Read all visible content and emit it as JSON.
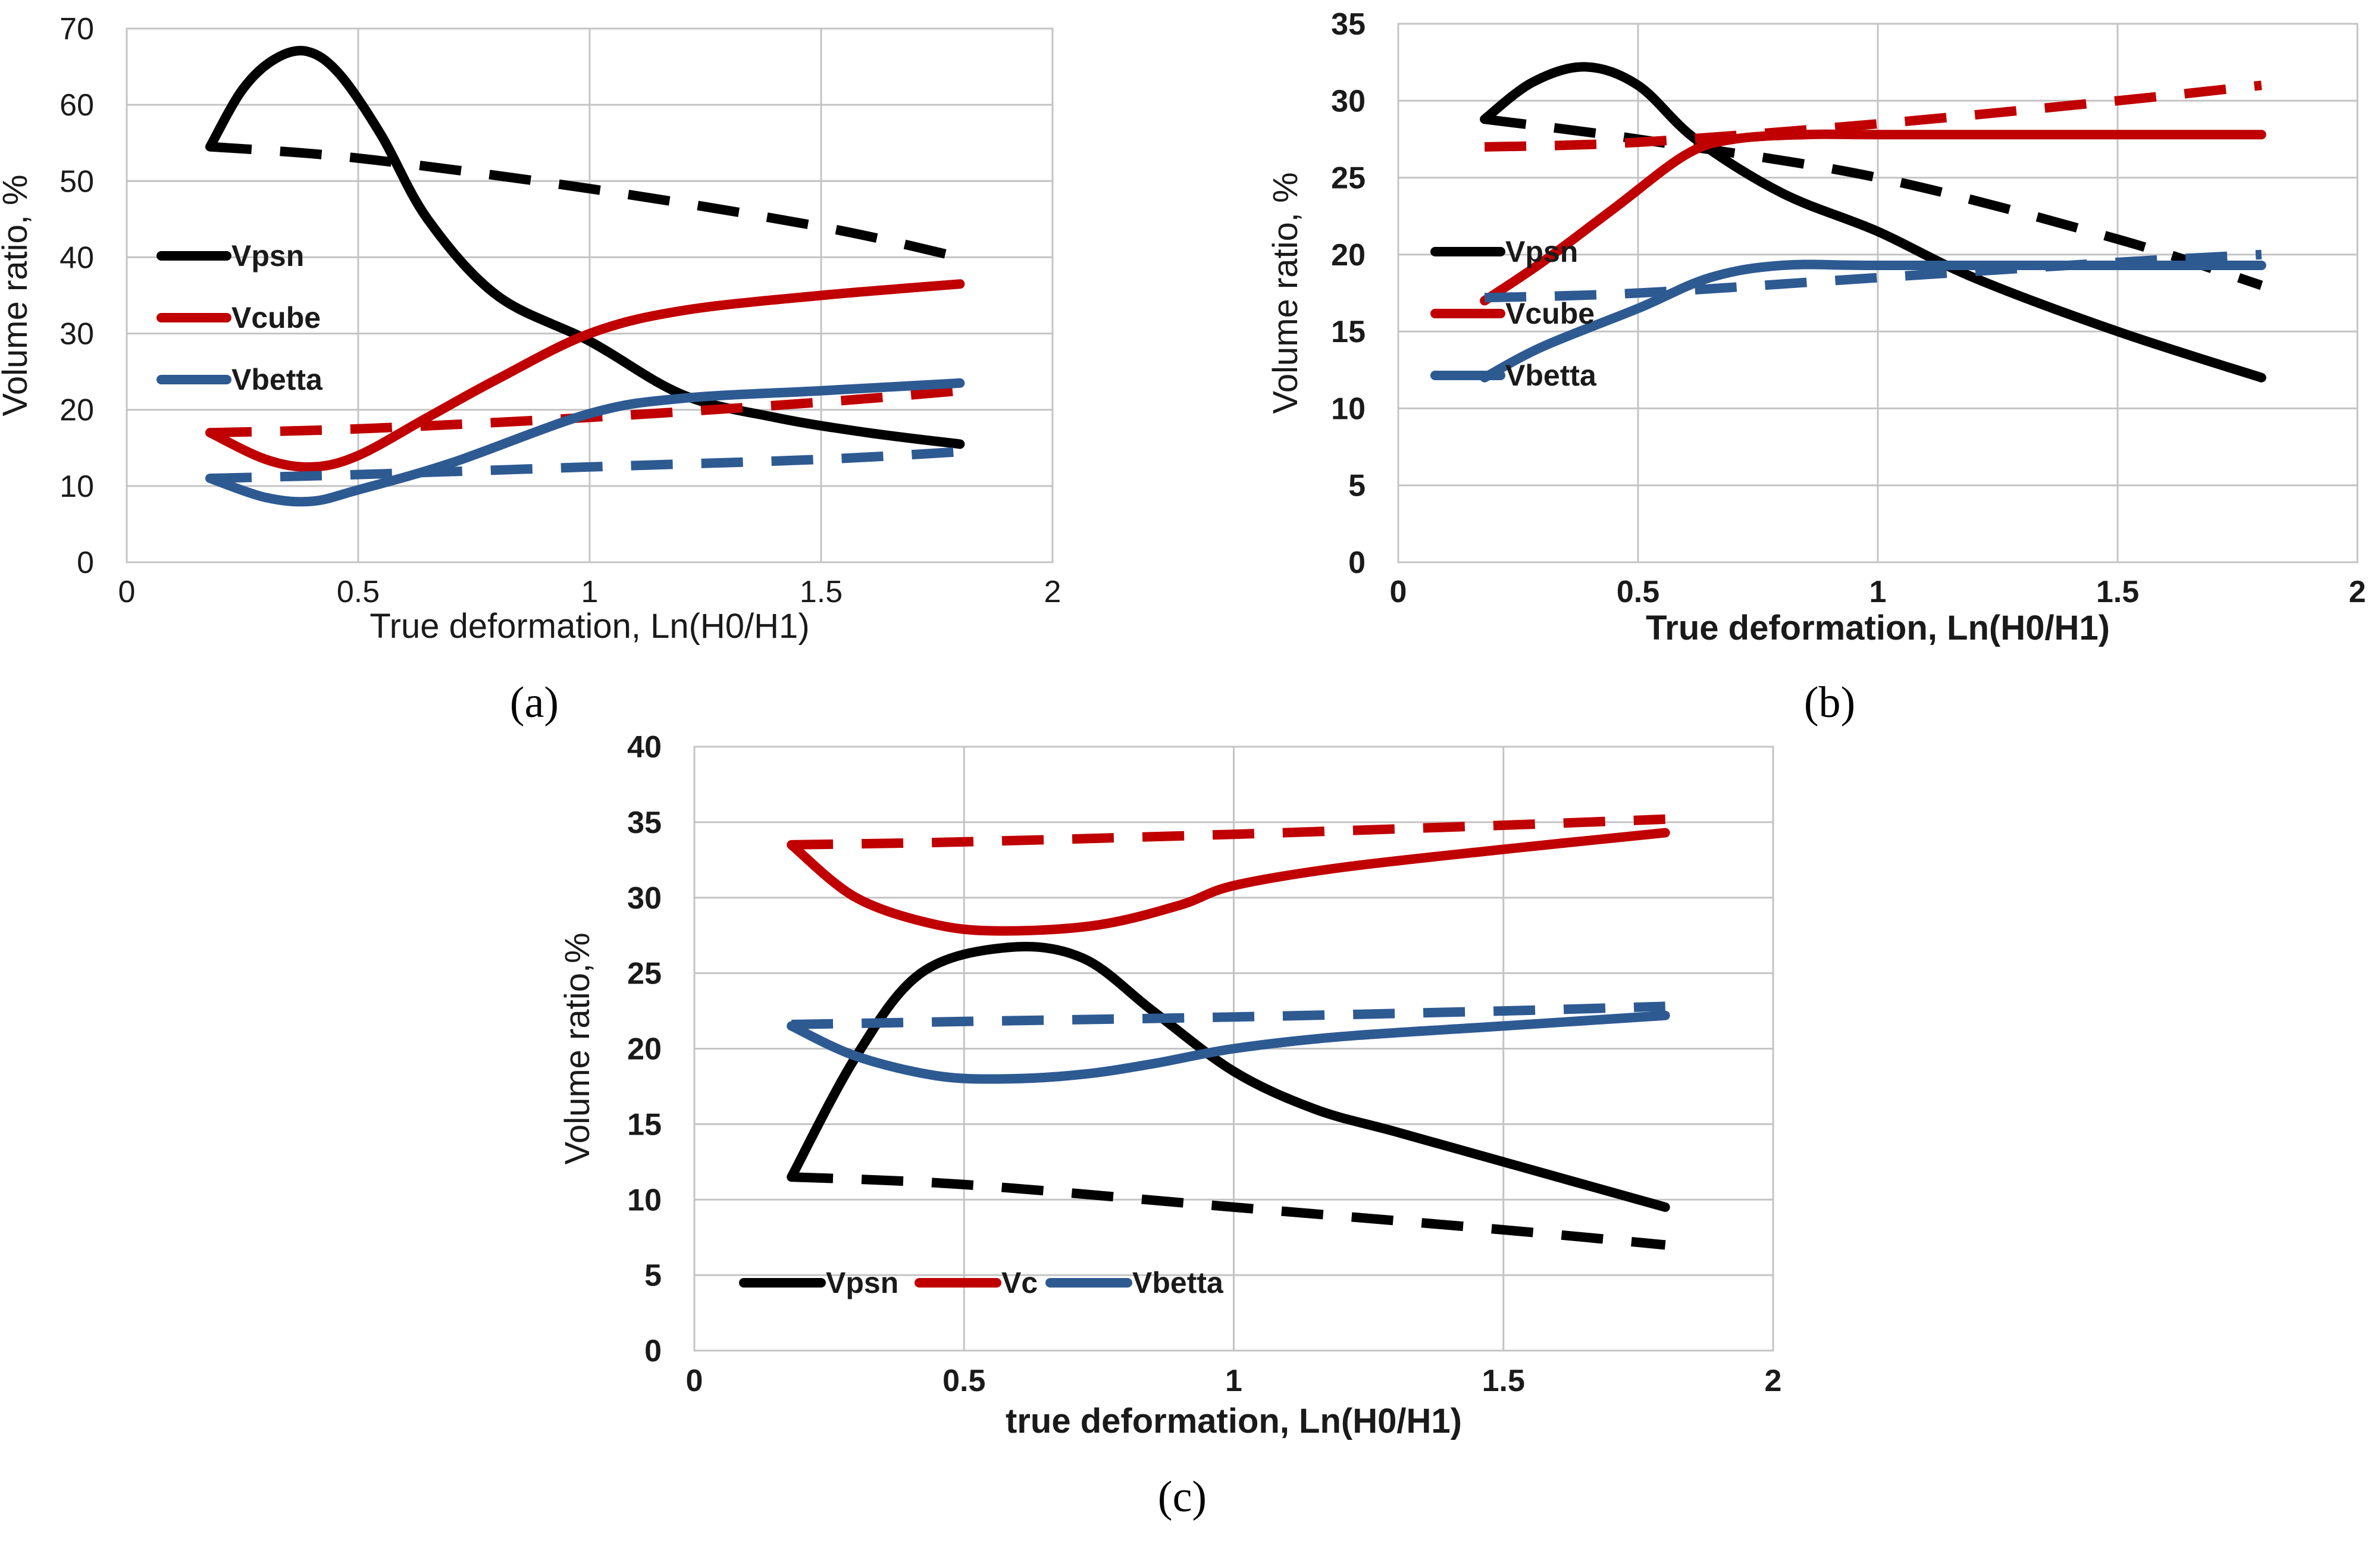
{
  "colors": {
    "Vpsn": "#000000",
    "Vcube": "#c00000",
    "Vbetta": "#2e5a92"
  },
  "chart_data": [
    {
      "type": "line",
      "panel_label": "(a)",
      "xlabel": "True deformation, Ln(H0/H1)",
      "ylabel": "Volume ratio, %",
      "xlim": [
        0,
        2
      ],
      "ylim": [
        0,
        70
      ],
      "xticks": [
        0,
        0.5,
        1,
        1.5,
        2
      ],
      "yticks": [
        0,
        10,
        20,
        30,
        40,
        50,
        60,
        70
      ],
      "xtick_labels": [
        "0",
        "0.5",
        "1",
        "1.5",
        "2"
      ],
      "ytick_labels": [
        "0",
        "10",
        "20",
        "30",
        "40",
        "50",
        "60",
        "70"
      ],
      "legend": [
        "Vpsn",
        "Vcube",
        "Vbetta"
      ],
      "series": [
        {
          "name": "Vpsn",
          "style": "solid",
          "color_key": "Vpsn",
          "x": [
            0.18,
            0.25,
            0.32,
            0.39,
            0.46,
            0.55,
            0.65,
            0.8,
            1.0,
            1.2,
            1.4,
            1.6,
            1.8
          ],
          "y": [
            54.5,
            62,
            66,
            67,
            64,
            56,
            45,
            35,
            29,
            22,
            19,
            17,
            15.5
          ]
        },
        {
          "name": "Vpsn (dashed)",
          "style": "dashed",
          "color_key": "Vpsn",
          "x": [
            0.18,
            0.5,
            1.0,
            1.5,
            1.8
          ],
          "y": [
            54.5,
            53,
            49,
            44,
            40
          ]
        },
        {
          "name": "Vcube",
          "style": "solid",
          "color_key": "Vcube",
          "x": [
            0.18,
            0.3,
            0.4,
            0.5,
            0.65,
            0.8,
            1.0,
            1.2,
            1.5,
            1.8
          ],
          "y": [
            17,
            13.5,
            12.5,
            14,
            19,
            24,
            30,
            33,
            35,
            36.5
          ]
        },
        {
          "name": "Vcube (dashed)",
          "style": "dashed",
          "color_key": "Vcube",
          "x": [
            0.18,
            0.5,
            1.0,
            1.5,
            1.8
          ],
          "y": [
            17,
            17.5,
            19,
            21,
            22.5
          ]
        },
        {
          "name": "Vbetta",
          "style": "solid",
          "color_key": "Vbetta",
          "x": [
            0.18,
            0.3,
            0.4,
            0.5,
            0.7,
            1.0,
            1.2,
            1.5,
            1.8
          ],
          "y": [
            11,
            8.5,
            8,
            9.5,
            13,
            19.5,
            21.5,
            22.5,
            23.5
          ]
        },
        {
          "name": "Vbetta (dashed)",
          "style": "dashed",
          "color_key": "Vbetta",
          "x": [
            0.18,
            0.5,
            1.0,
            1.5,
            1.8
          ],
          "y": [
            11,
            11.5,
            12.5,
            13.5,
            14.5
          ]
        }
      ]
    },
    {
      "type": "line",
      "panel_label": "(b)",
      "xlabel": "True deformation, Ln(H0/H1)",
      "ylabel": "Volume ratio, %",
      "xlim": [
        0,
        2
      ],
      "ylim": [
        0,
        35
      ],
      "xticks": [
        0,
        0.5,
        1,
        1.5,
        2
      ],
      "yticks": [
        0,
        5,
        10,
        15,
        20,
        25,
        30,
        35
      ],
      "xtick_labels": [
        "0",
        "0.5",
        "1",
        "1.5",
        "2"
      ],
      "ytick_labels": [
        "0",
        "5",
        "10",
        "15",
        "20",
        "25",
        "30",
        "35"
      ],
      "legend": [
        "Vpsn",
        "Vcube",
        "Vbetta"
      ],
      "series": [
        {
          "name": "Vpsn",
          "style": "solid",
          "color_key": "Vpsn",
          "x": [
            0.18,
            0.28,
            0.39,
            0.5,
            0.62,
            0.8,
            1.0,
            1.2,
            1.5,
            1.8
          ],
          "y": [
            28.8,
            31.2,
            32.2,
            31,
            27.5,
            24,
            21.5,
            18.5,
            15,
            12
          ]
        },
        {
          "name": "Vpsn (dashed)",
          "style": "dashed",
          "color_key": "Vpsn",
          "x": [
            0.18,
            0.5,
            1.0,
            1.5,
            1.8
          ],
          "y": [
            28.8,
            27.5,
            25,
            21,
            18
          ]
        },
        {
          "name": "Vcube",
          "style": "solid",
          "color_key": "Vcube",
          "x": [
            0.18,
            0.3,
            0.45,
            0.6,
            0.7,
            0.85,
            1.0,
            1.5,
            1.8
          ],
          "y": [
            17,
            19.5,
            23,
            26.5,
            27.5,
            27.8,
            27.8,
            27.8,
            27.8
          ]
        },
        {
          "name": "Vcube (dashed)",
          "style": "dashed",
          "color_key": "Vcube",
          "x": [
            0.18,
            0.5,
            1.0,
            1.5,
            1.8
          ],
          "y": [
            27,
            27.3,
            28.5,
            30,
            31
          ]
        },
        {
          "name": "Vbetta",
          "style": "solid",
          "color_key": "Vbetta",
          "x": [
            0.18,
            0.3,
            0.5,
            0.65,
            0.8,
            1.0,
            1.5,
            1.8
          ],
          "y": [
            12,
            14,
            16.5,
            18.5,
            19.3,
            19.3,
            19.3,
            19.3
          ]
        },
        {
          "name": "Vbetta (dashed)",
          "style": "dashed",
          "color_key": "Vbetta",
          "x": [
            0.18,
            0.5,
            1.0,
            1.5,
            1.8
          ],
          "y": [
            17.2,
            17.5,
            18.5,
            19.5,
            20
          ]
        }
      ]
    },
    {
      "type": "line",
      "panel_label": "(c)",
      "xlabel": "true deformation, Ln(H0/H1)",
      "ylabel": "Volume ratio,%",
      "xlim": [
        0,
        2
      ],
      "ylim": [
        0,
        40
      ],
      "xticks": [
        0,
        0.5,
        1,
        1.5,
        2
      ],
      "yticks": [
        0,
        5,
        10,
        15,
        20,
        25,
        30,
        35,
        40
      ],
      "xtick_labels": [
        "0",
        "0.5",
        "1",
        "1.5",
        "2"
      ],
      "ytick_labels": [
        "0",
        "5",
        "10",
        "15",
        "20",
        "25",
        "30",
        "35",
        "40"
      ],
      "legend": [
        "Vpsn",
        "Vc",
        "Vbetta"
      ],
      "series": [
        {
          "name": "Vpsn",
          "style": "solid",
          "color_key": "Vpsn",
          "x": [
            0.18,
            0.3,
            0.42,
            0.58,
            0.72,
            0.85,
            1.0,
            1.15,
            1.3,
            1.5,
            1.8
          ],
          "y": [
            11.5,
            19.5,
            25,
            26.7,
            26,
            22.5,
            18.5,
            16,
            14.5,
            12.5,
            9.5
          ]
        },
        {
          "name": "Vpsn (dashed)",
          "style": "dashed",
          "color_key": "Vpsn",
          "x": [
            0.18,
            0.5,
            1.0,
            1.5,
            1.8
          ],
          "y": [
            11.5,
            11,
            9.5,
            8,
            7
          ]
        },
        {
          "name": "Vc",
          "style": "solid",
          "color_key": "Vcube",
          "x": [
            0.18,
            0.3,
            0.45,
            0.58,
            0.75,
            0.9,
            1.0,
            1.2,
            1.5,
            1.8
          ],
          "y": [
            33.5,
            30,
            28.2,
            27.8,
            28.2,
            29.5,
            30.8,
            32,
            33.2,
            34.3
          ]
        },
        {
          "name": "Vc (dashed)",
          "style": "dashed",
          "color_key": "Vcube",
          "x": [
            0.18,
            0.5,
            1.0,
            1.5,
            1.8
          ],
          "y": [
            33.5,
            33.7,
            34.2,
            34.8,
            35.2
          ]
        },
        {
          "name": "Vbetta",
          "style": "solid",
          "color_key": "Vbetta",
          "x": [
            0.18,
            0.3,
            0.45,
            0.58,
            0.72,
            0.85,
            1.0,
            1.2,
            1.5,
            1.8
          ],
          "y": [
            21.5,
            19.5,
            18.2,
            18,
            18.3,
            19,
            20,
            20.8,
            21.5,
            22.2
          ]
        },
        {
          "name": "Vbetta (dashed)",
          "style": "dashed",
          "color_key": "Vbetta",
          "x": [
            0.18,
            0.5,
            1.0,
            1.5,
            1.8
          ],
          "y": [
            21.6,
            21.8,
            22.1,
            22.5,
            22.8
          ]
        }
      ]
    }
  ]
}
